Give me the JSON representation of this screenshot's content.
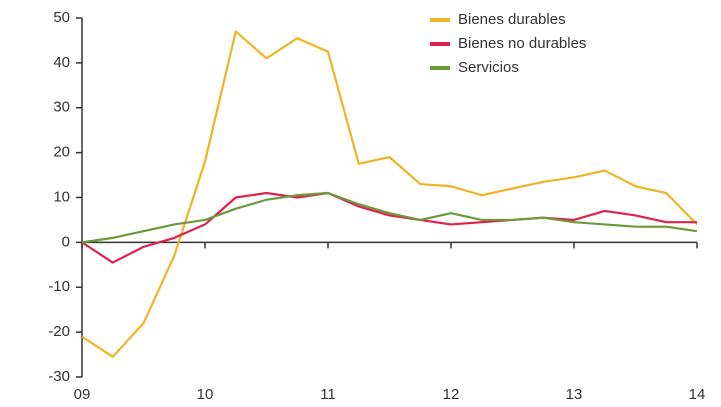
{
  "chart_data": {
    "type": "line",
    "x": [
      9,
      9.25,
      9.5,
      9.75,
      10,
      10.25,
      10.5,
      10.75,
      11,
      11.25,
      11.5,
      11.75,
      12,
      12.25,
      12.5,
      12.75,
      13,
      13.25,
      13.5,
      13.75,
      14
    ],
    "series": [
      {
        "name": "Bienes durables",
        "color": "#f0b323",
        "values": [
          -21,
          -25.5,
          -18,
          -3,
          18,
          47,
          41,
          45.5,
          42.5,
          17.5,
          19,
          13,
          12.5,
          10.5,
          12,
          13.5,
          14.5,
          16,
          12.5,
          11,
          4
        ]
      },
      {
        "name": "Bienes no durables",
        "color": "#e0204f",
        "values": [
          0,
          -4.5,
          -1,
          1,
          4,
          10,
          11,
          10,
          11,
          8,
          6,
          5,
          4,
          4.5,
          5,
          5.5,
          5,
          7,
          6,
          4.5,
          4.5
        ]
      },
      {
        "name": "Servicios",
        "color": "#6a9a3a",
        "values": [
          0,
          1,
          2.5,
          4,
          5,
          7.5,
          9.5,
          10.5,
          11,
          8.5,
          6.5,
          5,
          6.5,
          5,
          5,
          5.5,
          4.5,
          4,
          3.5,
          3.5,
          2.5
        ]
      }
    ],
    "xlim": [
      9,
      14
    ],
    "xticks": [
      {
        "value": 9,
        "label": "09"
      },
      10,
      11,
      12,
      13,
      14
    ],
    "ylim": [
      -30,
      50
    ],
    "yticks": [
      -30,
      -20,
      -10,
      0,
      10,
      20,
      30,
      40,
      50
    ],
    "grid": false,
    "legend": "top-right"
  }
}
